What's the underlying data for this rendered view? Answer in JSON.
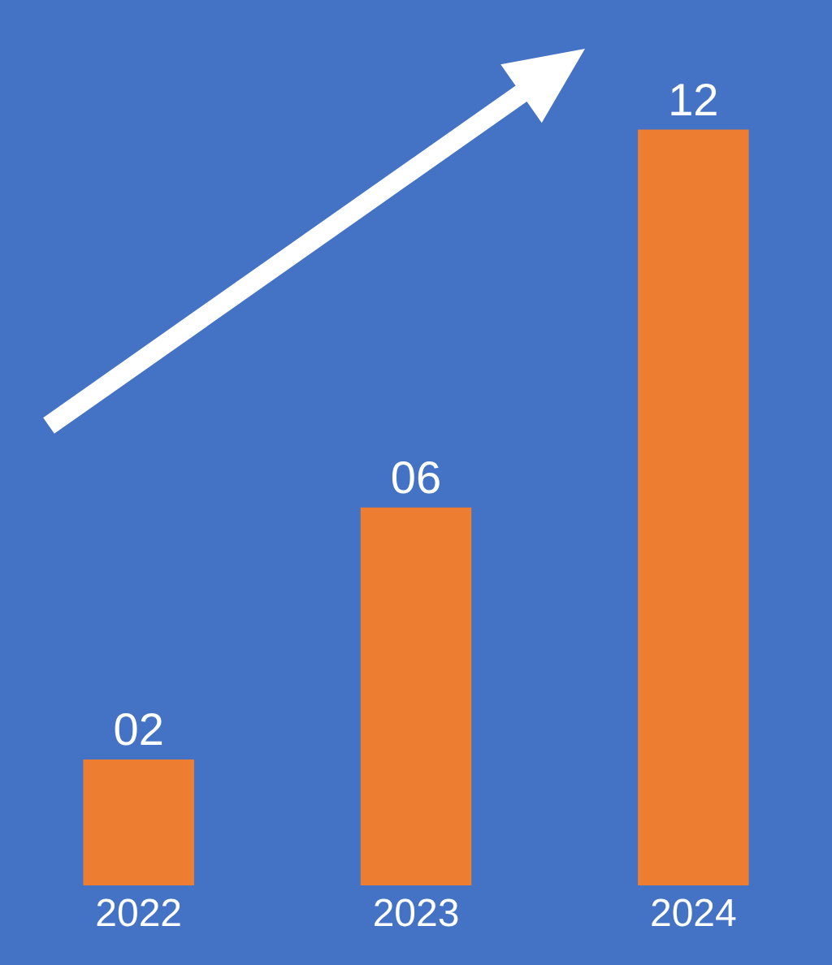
{
  "chart_data": {
    "type": "bar",
    "categories": [
      "2022",
      "2023",
      "2024"
    ],
    "values": [
      2,
      6,
      12
    ],
    "value_labels": [
      "02",
      "06",
      "12"
    ],
    "color": "#ed7d31",
    "grid": false,
    "legend": false
  }
}
